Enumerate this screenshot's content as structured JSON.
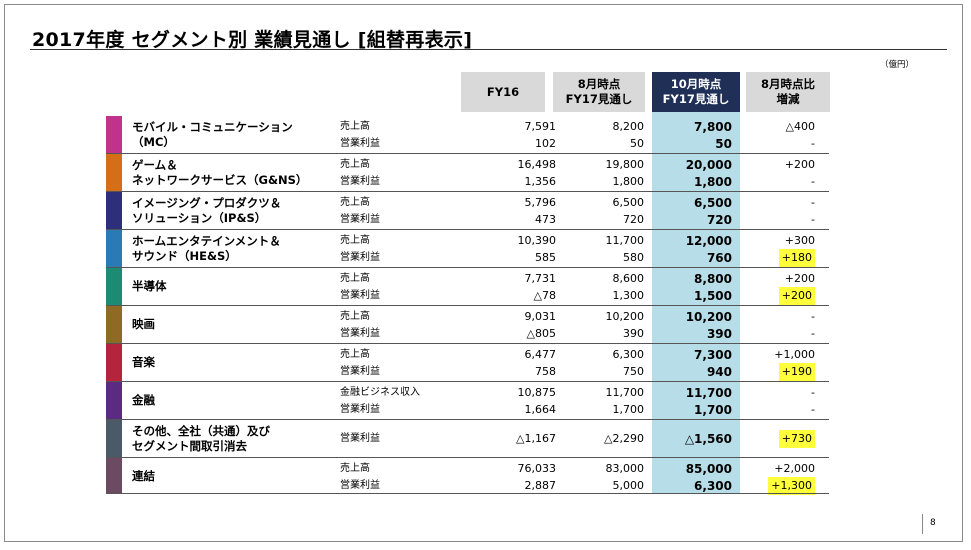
{
  "title": "2017年度  セグメント別 業績見通し  [組替再表示]",
  "unit": "（億円）",
  "headers": {
    "fy16": "FY16",
    "aug_1": "8月時点",
    "aug_2": "FY17見通し",
    "oct_1": "10月時点",
    "oct_2": "FY17見通し",
    "diff_1": "8月時点比",
    "diff_2": "増減"
  },
  "colors": {
    "header_gray": "#d9d9d9",
    "header_dark": "#1f2f55",
    "highlight_col": "#b7dde8",
    "marker_yellow": "#ffff3c"
  },
  "segments": [
    {
      "color": "#c0328c",
      "name": [
        "モバイル・コミュニケーション",
        "（MC）"
      ],
      "rows": [
        {
          "label": "売上高",
          "fy16": "7,591",
          "aug": "8,200",
          "oct": "7,800",
          "diff": "△400",
          "hl": false
        },
        {
          "label": "営業利益",
          "fy16": "102",
          "aug": "50",
          "oct": "50",
          "diff": "-",
          "hl": false
        }
      ]
    },
    {
      "color": "#d46e18",
      "name": [
        "ゲーム＆",
        "ネットワークサービス（G&NS）"
      ],
      "rows": [
        {
          "label": "売上高",
          "fy16": "16,498",
          "aug": "19,800",
          "oct": "20,000",
          "diff": "+200",
          "hl": false
        },
        {
          "label": "営業利益",
          "fy16": "1,356",
          "aug": "1,800",
          "oct": "1,800",
          "diff": "-",
          "hl": false
        }
      ]
    },
    {
      "color": "#2d2f7a",
      "name": [
        "イメージング・プロダクツ＆",
        "ソリューション（IP&S）"
      ],
      "rows": [
        {
          "label": "売上高",
          "fy16": "5,796",
          "aug": "6,500",
          "oct": "6,500",
          "diff": "-",
          "hl": false
        },
        {
          "label": "営業利益",
          "fy16": "473",
          "aug": "720",
          "oct": "720",
          "diff": "-",
          "hl": false
        }
      ]
    },
    {
      "color": "#2a7ab5",
      "name": [
        "ホームエンタテインメント＆",
        "サウンド（HE&S）"
      ],
      "rows": [
        {
          "label": "売上高",
          "fy16": "10,390",
          "aug": "11,700",
          "oct": "12,000",
          "diff": "+300",
          "hl": false
        },
        {
          "label": "営業利益",
          "fy16": "585",
          "aug": "580",
          "oct": "760",
          "diff": "+180",
          "hl": true
        }
      ]
    },
    {
      "color": "#1d8a74",
      "name": [
        "半導体"
      ],
      "rows": [
        {
          "label": "売上高",
          "fy16": "7,731",
          "aug": "8,600",
          "oct": "8,800",
          "diff": "+200",
          "hl": false
        },
        {
          "label": "営業利益",
          "fy16": "△78",
          "aug": "1,300",
          "oct": "1,500",
          "diff": "+200",
          "hl": true
        }
      ]
    },
    {
      "color": "#8e6a24",
      "name": [
        "映画"
      ],
      "rows": [
        {
          "label": "売上高",
          "fy16": "9,031",
          "aug": "10,200",
          "oct": "10,200",
          "diff": "-",
          "hl": false
        },
        {
          "label": "営業利益",
          "fy16": "△805",
          "aug": "390",
          "oct": "390",
          "diff": "-",
          "hl": false
        }
      ]
    },
    {
      "color": "#b5233d",
      "name": [
        "音楽"
      ],
      "rows": [
        {
          "label": "売上高",
          "fy16": "6,477",
          "aug": "6,300",
          "oct": "7,300",
          "diff": "+1,000",
          "hl": false
        },
        {
          "label": "営業利益",
          "fy16": "758",
          "aug": "750",
          "oct": "940",
          "diff": "+190",
          "hl": true
        }
      ]
    },
    {
      "color": "#5b2b82",
      "name": [
        "金融"
      ],
      "rows": [
        {
          "label": "金融ビジネス収入",
          "fy16": "10,875",
          "aug": "11,700",
          "oct": "11,700",
          "diff": "-",
          "hl": false
        },
        {
          "label": "営業利益",
          "fy16": "1,664",
          "aug": "1,700",
          "oct": "1,700",
          "diff": "-",
          "hl": false
        }
      ]
    },
    {
      "color": "#4a5a68",
      "name": [
        "その他、全社（共通）及び",
        "セグメント間取引消去"
      ],
      "rows": [
        {
          "label": "営業利益",
          "fy16": "△1,167",
          "aug": "△2,290",
          "oct": "△1,560",
          "diff": "+730",
          "hl": true
        }
      ]
    },
    {
      "color": "#6b4a62",
      "name": [
        "連結"
      ],
      "rows": [
        {
          "label": "売上高",
          "fy16": "76,033",
          "aug": "83,000",
          "oct": "85,000",
          "diff": "+2,000",
          "hl": false
        },
        {
          "label": "営業利益",
          "fy16": "2,887",
          "aug": "5,000",
          "oct": "6,300",
          "diff": "+1,300",
          "hl": true
        }
      ]
    }
  ],
  "page_number": "8"
}
